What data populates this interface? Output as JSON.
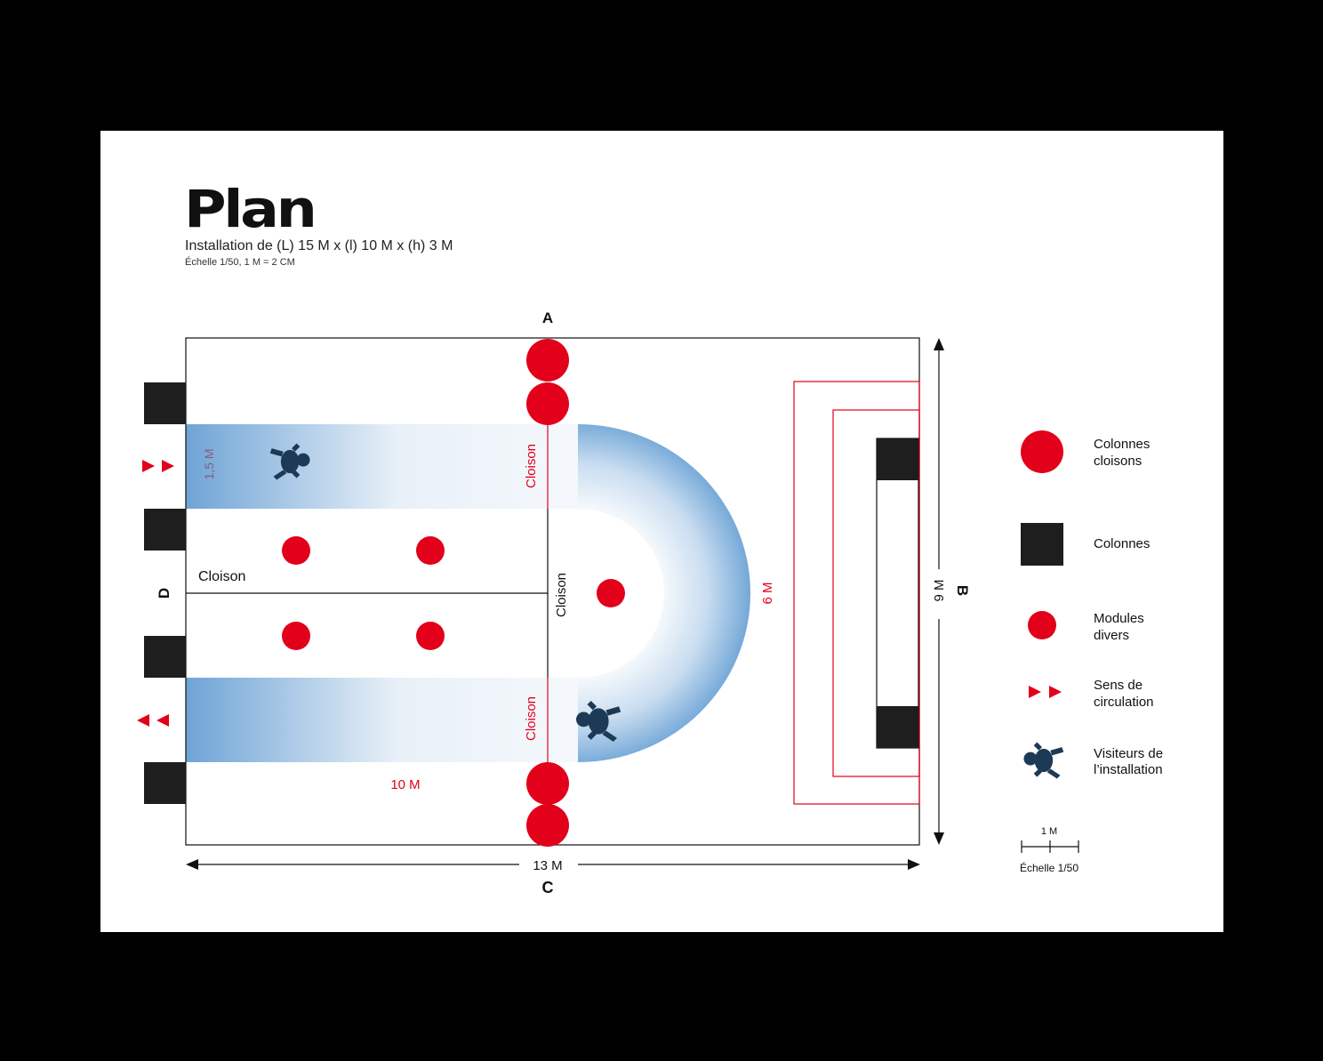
{
  "title": "Plan",
  "subtitle": "Installation de (L) 15 M x (l) 10 M x (h) 3 M",
  "scale_note": "Échelle 1/50, 1 M = 2 CM",
  "sides": {
    "a": "A",
    "b": "B",
    "c": "C",
    "d": "D"
  },
  "dimensions": {
    "width_13m": "13 M",
    "height_9m": "9 M",
    "lane_1_5m": "1,5 M",
    "length_10m": "10 M",
    "radius_6m": "6 M"
  },
  "partitions": {
    "left_center": "Cloison",
    "vertical_center": "Cloison",
    "top_lane": "Cloison",
    "bottom_lane": "Cloison"
  },
  "legend": {
    "colonnes_cloisons": [
      "Colonnes",
      "cloisons"
    ],
    "colonnes": "Colonnes",
    "modules_divers": [
      "Modules",
      "divers"
    ],
    "sens_circulation": [
      "Sens de",
      "circulation"
    ],
    "visiteurs": [
      "Visiteurs de",
      "l’installation"
    ],
    "scale_bar_label": "1 M",
    "scale_bar_caption": "Échelle 1/50"
  },
  "colors": {
    "accent_red": "#e2001a",
    "column_black": "#1e1e1e",
    "lane_blue": "#6fa4d6",
    "page_bg": "#000000",
    "sheet_bg": "#ffffff"
  }
}
